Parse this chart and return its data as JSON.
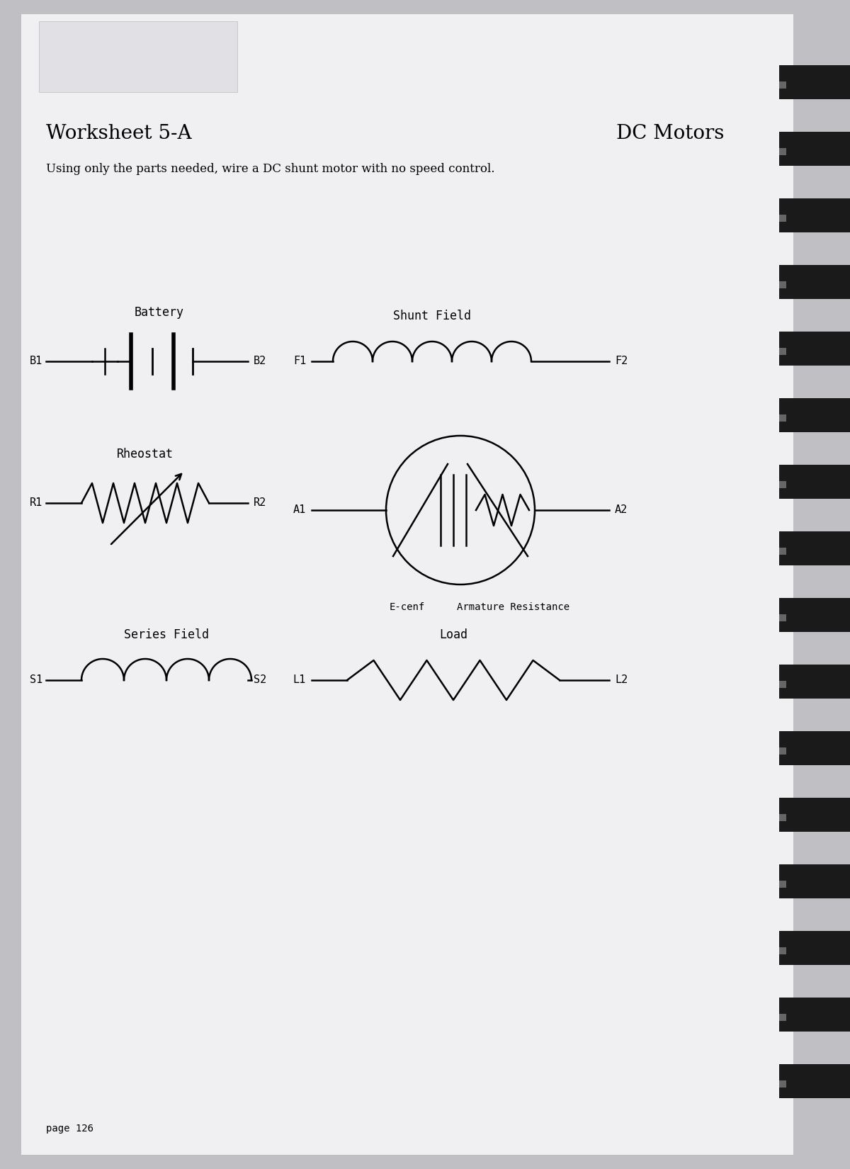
{
  "title_left": "Worksheet 5-A",
  "title_right": "DC Motors",
  "subtitle": "Using only the parts needed, wire a DC shunt motor with no speed control.",
  "page": "page 126",
  "bg_color": "#c8c8cc",
  "paper_color": "#f4f4f6",
  "components": {
    "battery": {
      "label": "Battery",
      "terminal1": "B1",
      "terminal2": "B2"
    },
    "shunt_field": {
      "label": "Shunt Field",
      "terminal1": "F1",
      "terminal2": "F2"
    },
    "rheostat": {
      "label": "Rheostat",
      "terminal1": "R1",
      "terminal2": "R2"
    },
    "armature": {
      "label_left": "E-cenf",
      "label_right": "Armature Resistance",
      "terminal1": "A1",
      "terminal2": "A2"
    },
    "series_field": {
      "label": "Series Field",
      "terminal1": "S1",
      "terminal2": "S2"
    },
    "load": {
      "label": "Load",
      "terminal1": "L1",
      "terminal2": "L2"
    }
  }
}
